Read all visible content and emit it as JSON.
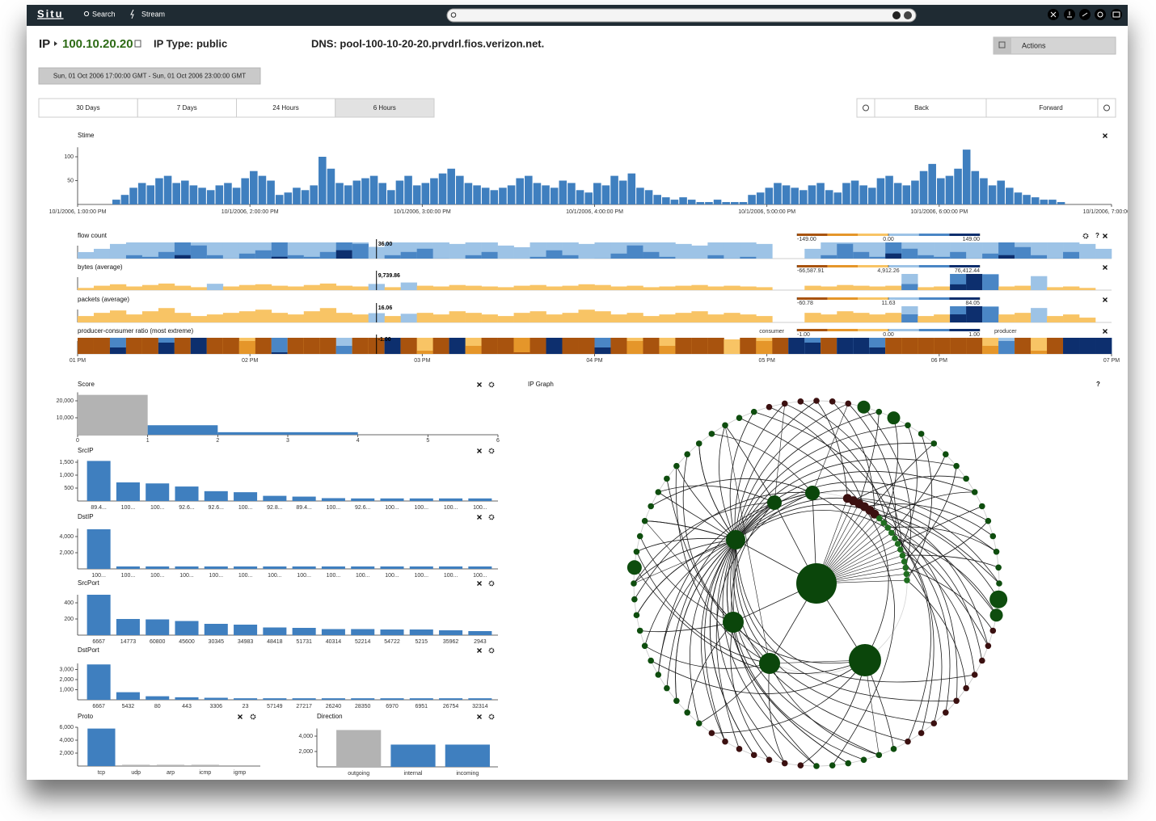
{
  "nav": {
    "brand": "Situ",
    "links": [
      "Search",
      "Stream"
    ]
  },
  "header": {
    "label": "IP",
    "ip": "100.10.20.20",
    "ip_type": "IP Type: public",
    "dns": "DNS: pool-100-10-20-20.prvdrl.fios.verizon.net.",
    "actions": "Actions",
    "time_range": "Sun, 01 Oct 2006 17:00:00 GMT - Sun, 01 Oct 2006 23:00:00 GMT",
    "ranges": [
      "30 Days",
      "7 Days",
      "24 Hours",
      "6 Hours"
    ],
    "active_range": 3,
    "back": "Back",
    "forward": "Forward"
  },
  "chart_data": [
    {
      "type": "bar",
      "title": "Stime",
      "color": "#3f7fbf",
      "ylim": [
        0,
        120
      ],
      "yticks": [
        50,
        100
      ],
      "x_labels": [
        "10/1/2006, 1:00:00 PM",
        "10/1/2006, 2:00:00 PM",
        "10/1/2006, 3:00:00 PM",
        "10/1/2006, 4:00:00 PM",
        "10/1/2006, 5:00:00 PM",
        "10/1/2006, 6:00:00 PM",
        "10/1/2006, 7:00:00 PM"
      ],
      "values": [
        0,
        0,
        0,
        0,
        10,
        20,
        35,
        45,
        40,
        55,
        60,
        45,
        50,
        40,
        35,
        30,
        40,
        45,
        35,
        55,
        70,
        60,
        50,
        20,
        25,
        35,
        30,
        40,
        100,
        75,
        45,
        40,
        50,
        55,
        60,
        45,
        30,
        50,
        60,
        40,
        45,
        55,
        65,
        75,
        60,
        45,
        40,
        35,
        30,
        35,
        40,
        55,
        60,
        45,
        40,
        35,
        50,
        45,
        30,
        25,
        45,
        40,
        60,
        50,
        65,
        35,
        30,
        20,
        15,
        10,
        15,
        10,
        5,
        5,
        10,
        5,
        5,
        5,
        20,
        25,
        35,
        45,
        40,
        35,
        30,
        40,
        45,
        30,
        25,
        45,
        50,
        40,
        35,
        55,
        60,
        45,
        40,
        50,
        70,
        85,
        55,
        60,
        75,
        115,
        70,
        55,
        40,
        50,
        35,
        25,
        20,
        15,
        10,
        10,
        5,
        0,
        0,
        0,
        0,
        0
      ]
    },
    {
      "type": "horizon",
      "title": "flow count",
      "help": "?",
      "scale": [
        {
          "value": -149,
          "label": "-149.00"
        },
        {
          "value": 0,
          "label": "0.00"
        },
        {
          "value": 149,
          "label": "149.00"
        }
      ],
      "cursor": {
        "index": 18,
        "value": 36,
        "label": "36.00"
      },
      "values": [
        20,
        30,
        45,
        60,
        55,
        70,
        110,
        90,
        60,
        50,
        65,
        75,
        105,
        60,
        55,
        70,
        125,
        95,
        36,
        60,
        70,
        80,
        50,
        45,
        60,
        70,
        40,
        35,
        55,
        75,
        60,
        45,
        50,
        65,
        90,
        70,
        55,
        45,
        40,
        60,
        50,
        55,
        45,
        0,
        0,
        30,
        60,
        95,
        70,
        55,
        115,
        80,
        60,
        55,
        70,
        50,
        65,
        110,
        85,
        60,
        50,
        70,
        45,
        30
      ]
    },
    {
      "type": "horizon",
      "title": "bytes (average)",
      "scale": [
        {
          "value": -66587.91,
          "label": "-66,587.91"
        },
        {
          "value": 4912.26,
          "label": "4,912.26"
        },
        {
          "value": 76412.44,
          "label": "76,412.44"
        }
      ],
      "cursor": {
        "index": 18,
        "value": 9739.86,
        "label": "9,739.86"
      },
      "values": [
        -3000,
        -6000,
        -8000,
        -5000,
        -7000,
        -9000,
        -6000,
        -4000,
        10000,
        -5000,
        -7000,
        -8000,
        -6000,
        -5000,
        -7000,
        -9000,
        -6000,
        -5000,
        9739.86,
        -4000,
        12000,
        -6000,
        -5000,
        -7000,
        -6000,
        -5000,
        -4000,
        -6000,
        -7000,
        -5000,
        -6000,
        -8000,
        -7000,
        -5000,
        -6000,
        -4000,
        -5000,
        -6000,
        -7000,
        -5000,
        -6000,
        -5000,
        -4000,
        0,
        0,
        -6000,
        -5000,
        -7000,
        -6000,
        -5000,
        -6000,
        35000,
        -4000,
        -5000,
        60000,
        76412.44,
        50000,
        -5000,
        -6000,
        22000,
        -4000,
        -5000,
        -3000,
        0
      ]
    },
    {
      "type": "horizon",
      "title": "packets (average)",
      "scale": [
        {
          "value": -60.78,
          "label": "-60.78"
        },
        {
          "value": 11.63,
          "label": "11.63"
        },
        {
          "value": 84.05,
          "label": "84.05"
        }
      ],
      "cursor": {
        "index": 18,
        "value": 16.06,
        "label": "16.06"
      },
      "values": [
        -8,
        -12,
        -15,
        -10,
        -14,
        -18,
        -12,
        -8,
        -10,
        -12,
        -14,
        -16,
        -12,
        -10,
        -14,
        -18,
        -12,
        -10,
        16.06,
        -8,
        15,
        -12,
        -10,
        -14,
        -12,
        -10,
        -8,
        -12,
        -14,
        -10,
        -12,
        -16,
        -14,
        -10,
        -12,
        -8,
        -10,
        -12,
        -14,
        -10,
        -12,
        -10,
        -8,
        0,
        0,
        -12,
        -10,
        -14,
        -12,
        -10,
        -12,
        42,
        -8,
        -10,
        70,
        84.05,
        55,
        -10,
        -12,
        25,
        -8,
        -10,
        -6,
        0
      ]
    },
    {
      "type": "horizon",
      "title": "producer-consumer ratio (most extreme)",
      "low_label": "consumer",
      "high_label": "producer",
      "scale": [
        {
          "value": -1,
          "label": "-1.00"
        },
        {
          "value": 0,
          "label": "0.00"
        },
        {
          "value": 1,
          "label": "1.00"
        }
      ],
      "cursor": {
        "index": 18,
        "value": -1,
        "label": "-1.00"
      },
      "x_labels": [
        "01 PM",
        "02 PM",
        "03 PM",
        "04 PM",
        "05 PM",
        "06 PM",
        "07 PM"
      ],
      "values": [
        -1,
        -1,
        0.8,
        -1,
        -1,
        0.9,
        -1,
        1,
        -1,
        -1,
        -0.6,
        -1,
        0.7,
        -1,
        -1,
        -1,
        0.5,
        -1,
        -1,
        1,
        -1,
        -0.4,
        -1,
        1,
        -0.5,
        -1,
        -1,
        -0.7,
        -1,
        1,
        -1,
        -1,
        0.8,
        -1,
        -0.6,
        -1,
        -0.5,
        -1,
        -1,
        -1,
        -0.3,
        -1,
        -0.6,
        -1,
        1,
        0.9,
        -1,
        1,
        1,
        0.8,
        -1,
        -1,
        -1,
        -1,
        -1,
        -1,
        -0.5,
        0.6,
        -1,
        -0.4,
        -1,
        1,
        1,
        1
      ]
    },
    {
      "type": "histogram",
      "title": "Score",
      "bins": [
        0,
        1,
        2,
        4
      ],
      "counts": [
        23500,
        5600,
        1500
      ],
      "colors": [
        "#b3b3b3",
        "#3f7fbf",
        "#3f7fbf"
      ],
      "xlim": [
        0,
        6
      ],
      "xticks": [
        0,
        1,
        2,
        3,
        4,
        5,
        6
      ],
      "ylim": [
        0,
        25000
      ],
      "yticks": [
        {
          "value": 10000,
          "label": "10,000"
        },
        {
          "value": 20000,
          "label": "20,000"
        }
      ]
    },
    {
      "type": "bar",
      "title": "SrcIP",
      "color": "#3f7fbf",
      "ylim": [
        0,
        1600
      ],
      "yticks": [
        500,
        {
          "value": 1000,
          "label": "1,000"
        },
        {
          "value": 1500,
          "label": "1,500"
        }
      ],
      "categories": [
        "89.4...",
        "100...",
        "100...",
        "92.6...",
        "92.6...",
        "100...",
        "92.8...",
        "89.4...",
        "100...",
        "92.6...",
        "100...",
        "100...",
        "100...",
        "100..."
      ],
      "values": [
        1550,
        720,
        680,
        560,
        380,
        340,
        200,
        170,
        110,
        100,
        100,
        100,
        100,
        100
      ]
    },
    {
      "type": "bar",
      "title": "DstIP",
      "color": "#3f7fbf",
      "ylim": [
        0,
        5000
      ],
      "yticks": [
        {
          "value": 2000,
          "label": "2,000"
        },
        {
          "value": 4000,
          "label": "4,000"
        }
      ],
      "categories": [
        "100...",
        "100...",
        "100...",
        "100...",
        "100...",
        "100...",
        "100...",
        "100...",
        "100...",
        "100...",
        "100...",
        "100...",
        "100...",
        "100..."
      ],
      "values": [
        4900,
        300,
        300,
        300,
        300,
        300,
        300,
        300,
        300,
        300,
        300,
        300,
        300,
        300
      ]
    },
    {
      "type": "bar",
      "title": "SrcPort",
      "color": "#3f7fbf",
      "ylim": [
        0,
        500
      ],
      "yticks": [
        200,
        400
      ],
      "categories": [
        "6667",
        "14773",
        "60800",
        "45600",
        "30345",
        "34983",
        "48418",
        "51731",
        "40314",
        "52214",
        "54722",
        "5215",
        "35962",
        "2943"
      ],
      "values": [
        500,
        200,
        195,
        175,
        140,
        130,
        95,
        90,
        75,
        75,
        70,
        70,
        60,
        50
      ]
    },
    {
      "type": "bar",
      "title": "DstPort",
      "color": "#3f7fbf",
      "ylim": [
        0,
        3600
      ],
      "yticks": [
        {
          "value": 1000,
          "label": "1,000"
        },
        {
          "value": 2000,
          "label": "2,000"
        },
        {
          "value": 3000,
          "label": "3,000"
        }
      ],
      "categories": [
        "6667",
        "5432",
        "80",
        "443",
        "3306",
        "23",
        "57149",
        "27217",
        "26240",
        "28350",
        "6970",
        "6951",
        "26754",
        "32314"
      ],
      "values": [
        3500,
        750,
        350,
        250,
        200,
        150,
        150,
        150,
        150,
        150,
        150,
        150,
        150,
        150
      ]
    },
    {
      "type": "bar",
      "title": "Proto",
      "ylim": [
        0,
        6000
      ],
      "yticks": [
        {
          "value": 2000,
          "label": "2,000"
        },
        {
          "value": 4000,
          "label": "4,000"
        },
        {
          "value": 6000,
          "label": "6,000"
        }
      ],
      "categories": [
        "tcp",
        "udp",
        "arp",
        "icmp",
        "igmp"
      ],
      "values": [
        5800,
        200,
        200,
        200,
        0
      ],
      "colors": [
        "#3f7fbf",
        "#b3b3b3",
        "#b3b3b3",
        "#b3b3b3",
        "#b3b3b3"
      ]
    },
    {
      "type": "bar",
      "title": "Direction",
      "ylim": [
        0,
        5000
      ],
      "yticks": [
        {
          "value": 2000,
          "label": "2,000"
        },
        {
          "value": 4000,
          "label": "4,000"
        }
      ],
      "categories": [
        "outgoing",
        "internal",
        "incoming"
      ],
      "values": [
        4800,
        2900,
        2900
      ],
      "colors": [
        "#b3b3b3",
        "#3f7fbf",
        "#3f7fbf"
      ]
    }
  ],
  "ip_graph": {
    "title": "IP Graph",
    "help": "?"
  }
}
